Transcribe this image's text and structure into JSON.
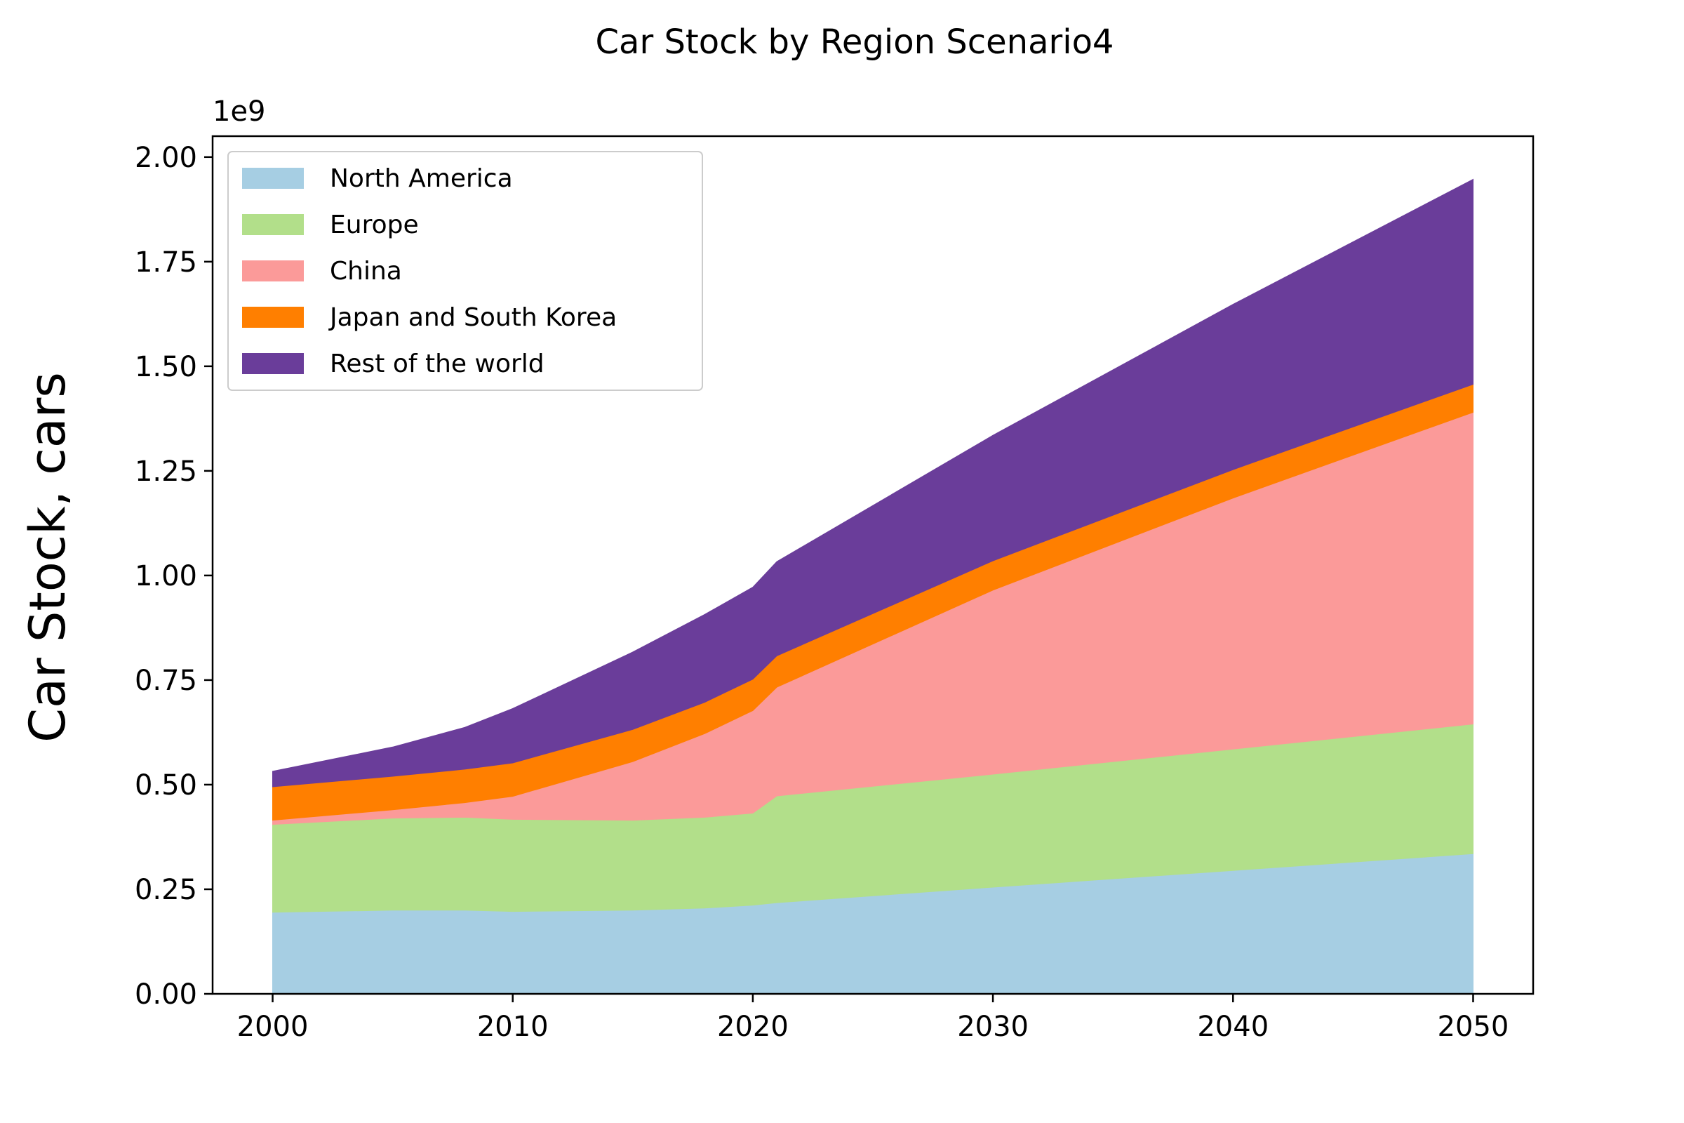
{
  "chart_data": {
    "type": "area",
    "title": "Car Stock by Region Scenario4",
    "xlabel": "",
    "ylabel": "Car Stock, cars",
    "y_offset_label": "1e9",
    "y_scale": 1000000000,
    "xlim": [
      1997.5,
      2052.5
    ],
    "ylim": [
      0,
      2.05
    ],
    "x_ticks": [
      2000,
      2010,
      2020,
      2030,
      2040,
      2050
    ],
    "x_tick_labels": [
      "2000",
      "2010",
      "2020",
      "2030",
      "2040",
      "2050"
    ],
    "y_ticks": [
      0,
      0.25,
      0.5,
      0.75,
      1.0,
      1.25,
      1.5,
      1.75,
      2.0
    ],
    "y_tick_labels": [
      "0.00",
      "0.25",
      "0.50",
      "0.75",
      "1.00",
      "1.25",
      "1.50",
      "1.75",
      "2.00"
    ],
    "grid": false,
    "stacked": true,
    "legend_position": "top-left",
    "x": [
      2000,
      2005,
      2008,
      2010,
      2015,
      2018,
      2020,
      2021,
      2030,
      2040,
      2050
    ],
    "series": [
      {
        "name": "North America",
        "color": "#a6cee3",
        "values": [
          0.195,
          0.2,
          0.2,
          0.197,
          0.2,
          0.205,
          0.212,
          0.218,
          0.255,
          0.295,
          0.335
        ]
      },
      {
        "name": "Europe",
        "color": "#b2df8a",
        "values": [
          0.21,
          0.22,
          0.222,
          0.22,
          0.215,
          0.217,
          0.22,
          0.255,
          0.27,
          0.29,
          0.31
        ]
      },
      {
        "name": "China",
        "color": "#fb9a99",
        "values": [
          0.01,
          0.02,
          0.035,
          0.055,
          0.14,
          0.2,
          0.245,
          0.26,
          0.44,
          0.6,
          0.745
        ]
      },
      {
        "name": "Japan and South Korea",
        "color": "#ff7f00",
        "values": [
          0.08,
          0.08,
          0.08,
          0.08,
          0.077,
          0.075,
          0.075,
          0.075,
          0.07,
          0.068,
          0.067
        ]
      },
      {
        "name": "Rest of the world",
        "color": "#6a3d9a",
        "values": [
          0.037,
          0.07,
          0.1,
          0.13,
          0.185,
          0.21,
          0.22,
          0.225,
          0.3,
          0.395,
          0.49
        ]
      }
    ]
  }
}
